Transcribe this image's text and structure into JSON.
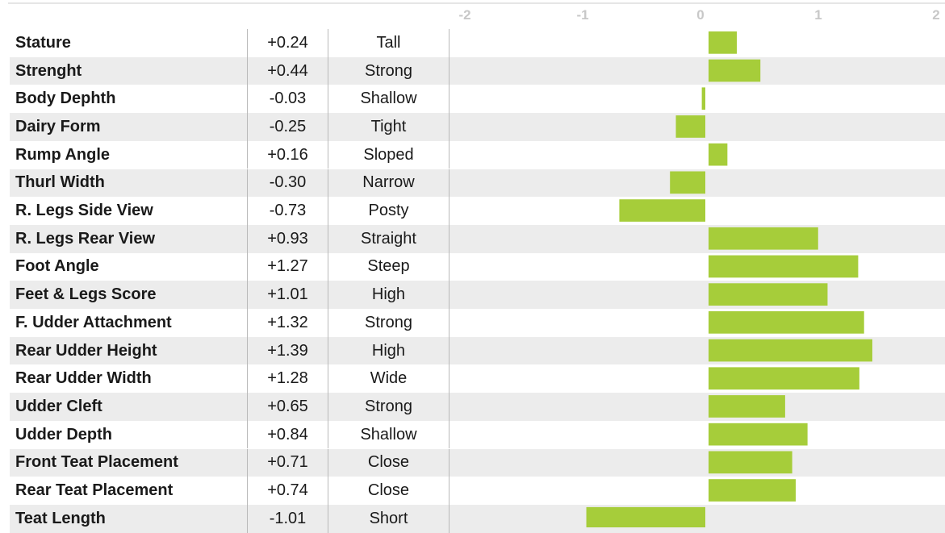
{
  "chart_data": {
    "type": "bar",
    "orientation": "horizontal",
    "xlim": [
      -2,
      2
    ],
    "x_ticks": [
      "-2",
      "-1",
      "0",
      "1",
      "2"
    ],
    "bar_color": "#a6cd3a",
    "grid": false,
    "rows": [
      {
        "trait": "Stature",
        "value_label": "+0.24",
        "value": 0.24,
        "description": "Tall"
      },
      {
        "trait": "Strenght",
        "value_label": "+0.44",
        "value": 0.44,
        "description": "Strong"
      },
      {
        "trait": "Body Dephth",
        "value_label": "-0.03",
        "value": -0.03,
        "description": "Shallow"
      },
      {
        "trait": "Dairy Form",
        "value_label": "-0.25",
        "value": -0.25,
        "description": "Tight"
      },
      {
        "trait": "Rump Angle",
        "value_label": "+0.16",
        "value": 0.16,
        "description": "Sloped"
      },
      {
        "trait": "Thurl Width",
        "value_label": "-0.30",
        "value": -0.3,
        "description": "Narrow"
      },
      {
        "trait": "R. Legs Side View",
        "value_label": "-0.73",
        "value": -0.73,
        "description": "Posty"
      },
      {
        "trait": "R. Legs Rear View",
        "value_label": "+0.93",
        "value": 0.93,
        "description": "Straight"
      },
      {
        "trait": "Foot Angle",
        "value_label": "+1.27",
        "value": 1.27,
        "description": "Steep"
      },
      {
        "trait": "Feet & Legs Score",
        "value_label": "+1.01",
        "value": 1.01,
        "description": "High"
      },
      {
        "trait": "F. Udder Attachment",
        "value_label": "+1.32",
        "value": 1.32,
        "description": "Strong"
      },
      {
        "trait": "Rear Udder Height",
        "value_label": "+1.39",
        "value": 1.39,
        "description": "High"
      },
      {
        "trait": "Rear Udder Width",
        "value_label": "+1.28",
        "value": 1.28,
        "description": "Wide"
      },
      {
        "trait": "Udder Cleft",
        "value_label": "+0.65",
        "value": 0.65,
        "description": "Strong"
      },
      {
        "trait": "Udder Depth",
        "value_label": "+0.84",
        "value": 0.84,
        "description": "Shallow"
      },
      {
        "trait": "Front Teat Placement",
        "value_label": "+0.71",
        "value": 0.71,
        "description": "Close"
      },
      {
        "trait": "Rear Teat Placement",
        "value_label": "+0.74",
        "value": 0.74,
        "description": "Close"
      },
      {
        "trait": "Teat Length",
        "value_label": "-1.01",
        "value": -1.01,
        "description": "Short"
      }
    ]
  }
}
